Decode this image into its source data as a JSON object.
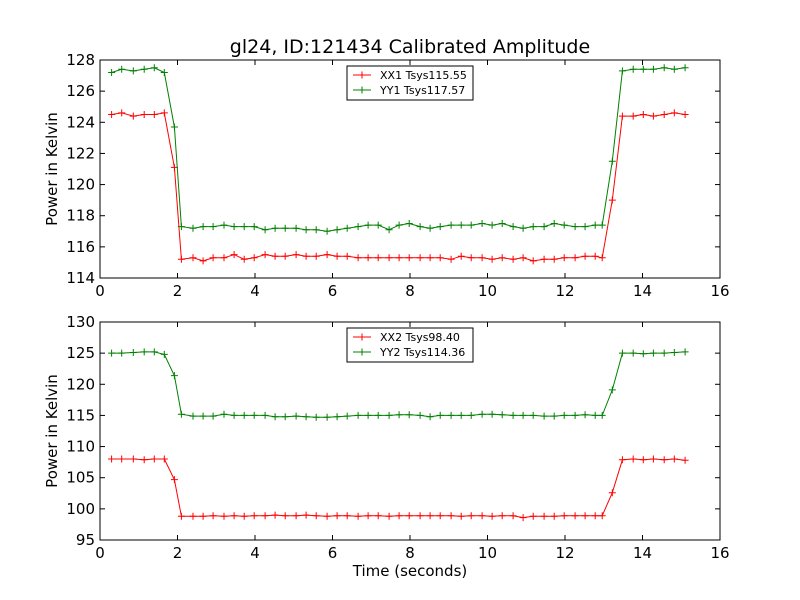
{
  "figure": {
    "title": "gl24, ID:121434 Calibrated Amplitude"
  },
  "chart_data": [
    {
      "type": "line",
      "title": "gl24, ID:121434 Calibrated Amplitude",
      "xlabel": "",
      "ylabel": "Power in Kelvin",
      "xlim": [
        0,
        16
      ],
      "ylim": [
        114,
        128
      ],
      "xticks": [
        "0",
        "2",
        "4",
        "6",
        "8",
        "10",
        "12",
        "14",
        "16"
      ],
      "yticks": [
        "114",
        "116",
        "118",
        "120",
        "122",
        "124",
        "126",
        "128"
      ],
      "grid": false,
      "legend": "top-center",
      "x": [
        0.3,
        0.56,
        0.86,
        1.14,
        1.4,
        1.66,
        1.92,
        2.1,
        2.4,
        2.66,
        2.92,
        3.2,
        3.46,
        3.72,
        3.98,
        4.26,
        4.52,
        4.78,
        5.06,
        5.32,
        5.58,
        5.86,
        6.12,
        6.38,
        6.66,
        6.92,
        7.18,
        7.46,
        7.72,
        7.98,
        8.26,
        8.52,
        8.78,
        9.06,
        9.32,
        9.58,
        9.86,
        10.12,
        10.38,
        10.66,
        10.92,
        11.18,
        11.46,
        11.72,
        11.98,
        12.26,
        12.52,
        12.78,
        12.96,
        13.22,
        13.48,
        13.76,
        14.02,
        14.28,
        14.56,
        14.82,
        15.1
      ],
      "series": [
        {
          "name": "XX1 Tsys115.55",
          "color": "#ff0000",
          "values": [
            124.5,
            124.6,
            124.4,
            124.5,
            124.5,
            124.6,
            121.1,
            115.2,
            115.3,
            115.1,
            115.3,
            115.3,
            115.5,
            115.2,
            115.3,
            115.5,
            115.4,
            115.4,
            115.5,
            115.4,
            115.4,
            115.5,
            115.4,
            115.4,
            115.3,
            115.3,
            115.3,
            115.3,
            115.3,
            115.3,
            115.3,
            115.3,
            115.3,
            115.2,
            115.4,
            115.3,
            115.3,
            115.2,
            115.3,
            115.2,
            115.3,
            115.1,
            115.2,
            115.2,
            115.3,
            115.3,
            115.4,
            115.4,
            115.3,
            119.0,
            124.4,
            124.4,
            124.5,
            124.4,
            124.5,
            124.6,
            124.5
          ]
        },
        {
          "name": "YY1 Tsys117.57",
          "color": "#008000",
          "values": [
            127.2,
            127.4,
            127.3,
            127.4,
            127.5,
            127.2,
            123.7,
            117.3,
            117.2,
            117.3,
            117.3,
            117.4,
            117.3,
            117.3,
            117.3,
            117.1,
            117.2,
            117.2,
            117.2,
            117.1,
            117.1,
            117.0,
            117.1,
            117.2,
            117.3,
            117.4,
            117.4,
            117.1,
            117.4,
            117.5,
            117.3,
            117.2,
            117.3,
            117.4,
            117.4,
            117.4,
            117.5,
            117.4,
            117.5,
            117.3,
            117.2,
            117.3,
            117.3,
            117.5,
            117.4,
            117.3,
            117.3,
            117.4,
            117.4,
            121.5,
            127.3,
            127.4,
            127.4,
            127.4,
            127.5,
            127.4,
            127.5
          ]
        }
      ]
    },
    {
      "type": "line",
      "title": "",
      "xlabel": "Time (seconds)",
      "ylabel": "Power in Kelvin",
      "xlim": [
        0,
        16
      ],
      "ylim": [
        95,
        130
      ],
      "xticks": [
        "0",
        "2",
        "4",
        "6",
        "8",
        "10",
        "12",
        "14",
        "16"
      ],
      "yticks": [
        "95",
        "100",
        "105",
        "110",
        "115",
        "120",
        "125",
        "130"
      ],
      "grid": false,
      "legend": "top-center",
      "x": [
        0.3,
        0.56,
        0.86,
        1.14,
        1.4,
        1.66,
        1.92,
        2.1,
        2.4,
        2.66,
        2.92,
        3.2,
        3.46,
        3.72,
        3.98,
        4.26,
        4.52,
        4.78,
        5.06,
        5.32,
        5.58,
        5.86,
        6.12,
        6.38,
        6.66,
        6.92,
        7.18,
        7.46,
        7.72,
        7.98,
        8.26,
        8.52,
        8.78,
        9.06,
        9.32,
        9.58,
        9.86,
        10.12,
        10.38,
        10.66,
        10.92,
        11.18,
        11.46,
        11.72,
        11.98,
        12.26,
        12.52,
        12.78,
        12.96,
        13.22,
        13.48,
        13.76,
        14.02,
        14.28,
        14.56,
        14.82,
        15.1
      ],
      "series": [
        {
          "name": "XX2 Tsys98.40",
          "color": "#ff0000",
          "values": [
            108.0,
            108.0,
            108.0,
            107.9,
            108.0,
            108.0,
            104.7,
            98.8,
            98.8,
            98.8,
            98.9,
            98.8,
            98.9,
            98.8,
            98.9,
            98.9,
            99.0,
            98.9,
            98.9,
            99.0,
            98.9,
            98.8,
            98.9,
            98.9,
            98.8,
            98.9,
            98.9,
            98.8,
            98.9,
            98.9,
            98.9,
            98.9,
            98.9,
            98.9,
            98.8,
            98.9,
            98.9,
            98.8,
            98.9,
            98.9,
            98.6,
            98.8,
            98.8,
            98.8,
            98.9,
            98.9,
            98.9,
            98.9,
            98.9,
            102.6,
            107.9,
            108.0,
            107.9,
            108.0,
            107.9,
            108.0,
            107.8
          ]
        },
        {
          "name": "YY2 Tsys114.36",
          "color": "#008000",
          "values": [
            125.0,
            125.0,
            125.1,
            125.2,
            125.2,
            124.8,
            121.4,
            115.2,
            114.9,
            114.9,
            114.9,
            115.2,
            115.0,
            115.0,
            115.0,
            115.0,
            114.8,
            114.8,
            114.9,
            114.8,
            114.7,
            114.7,
            114.8,
            114.9,
            115.0,
            115.0,
            115.0,
            115.0,
            115.1,
            115.1,
            115.0,
            114.8,
            115.0,
            115.0,
            115.0,
            115.0,
            115.2,
            115.2,
            115.1,
            115.0,
            115.0,
            115.0,
            114.9,
            114.9,
            115.0,
            115.0,
            115.1,
            115.0,
            115.0,
            119.1,
            125.0,
            125.0,
            124.9,
            125.0,
            125.0,
            125.1,
            125.2
          ]
        }
      ]
    }
  ]
}
